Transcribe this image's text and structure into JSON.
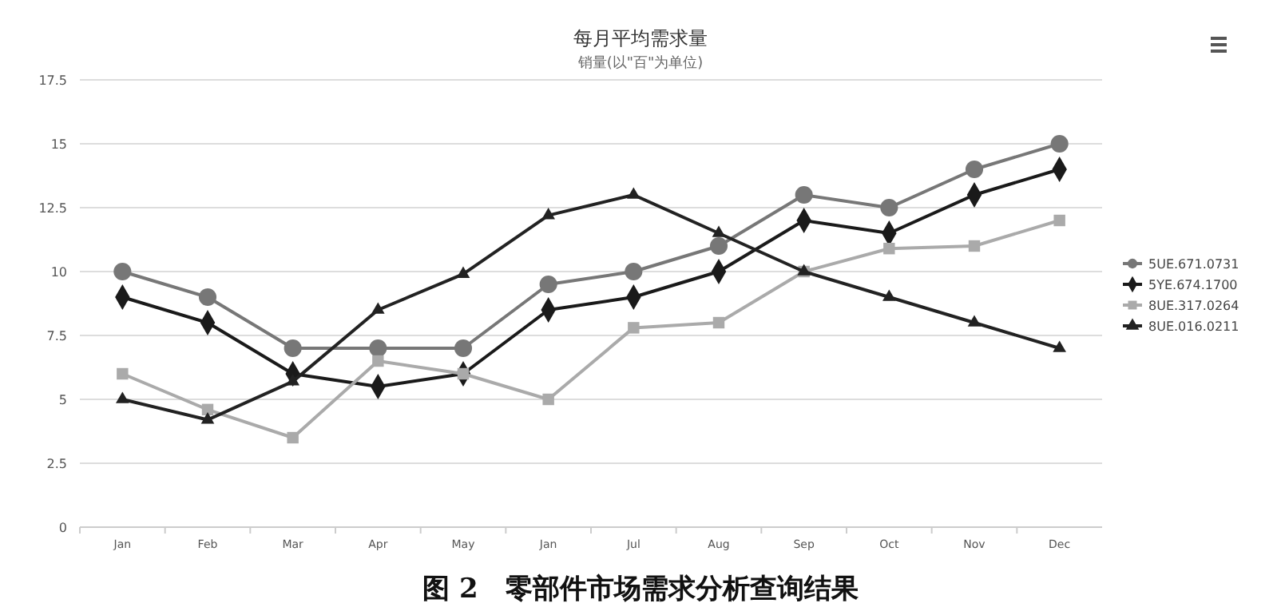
{
  "chart_data": {
    "type": "line",
    "title": "每月平均需求量",
    "subtitle": "销量(以\"百\"为单位)",
    "annotations": [
      "图 2　零部件市场需求分析查询结果"
    ],
    "categories": [
      "Jan",
      "Feb",
      "Mar",
      "Apr",
      "May",
      "Jan",
      "Jul",
      "Aug",
      "Sep",
      "Oct",
      "Nov",
      "Dec"
    ],
    "series": [
      {
        "name": "5UE.671.0731",
        "color": "#777777",
        "marker": "circle",
        "values": [
          10,
          9,
          7,
          7,
          7,
          9.5,
          10,
          11,
          13,
          12.5,
          14,
          15
        ]
      },
      {
        "name": "5YE.674.1700",
        "color": "#1a1a1a",
        "marker": "diamond",
        "values": [
          9,
          8,
          6,
          5.5,
          6,
          8.5,
          9,
          10,
          12,
          11.5,
          13,
          14
        ]
      },
      {
        "name": "8UE.317.0264",
        "color": "#aaaaaa",
        "marker": "square",
        "values": [
          6,
          4.6,
          3.5,
          6.5,
          6,
          5,
          7.8,
          8,
          10,
          10.9,
          11,
          12
        ]
      },
      {
        "name": "8UE.016.0211",
        "color": "#222222",
        "marker": "triangle",
        "values": [
          5,
          4.2,
          5.7,
          8.5,
          9.9,
          12.2,
          13,
          11.5,
          10,
          9,
          8,
          7
        ]
      }
    ],
    "ylim": [
      0,
      17.5
    ],
    "yticks": [
      0,
      2.5,
      5,
      7.5,
      10,
      12.5,
      15,
      17.5
    ],
    "grid": "y",
    "legend": "right",
    "line_style": "solid"
  }
}
